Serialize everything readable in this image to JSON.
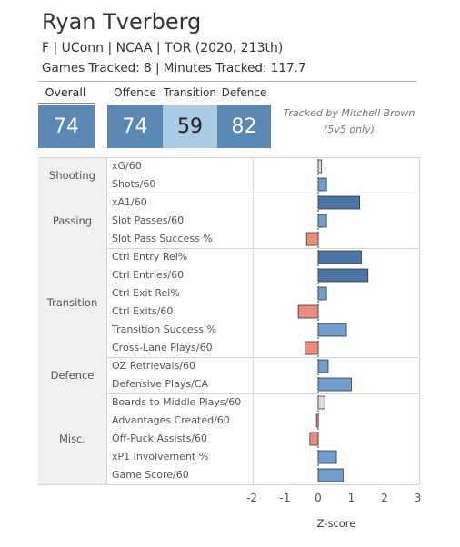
{
  "header": {
    "name": "Ryan Tverberg",
    "info": "F | UConn | NCAA | TOR (2020, 213th)",
    "games_line": "Games Tracked: 8 | Minutes Tracked: 117.7"
  },
  "scores": {
    "overall_label": "Overall",
    "overall": "74",
    "offence_label": "Offence",
    "offence": "74",
    "transition_label": "Transition",
    "transition": "59",
    "defence_label": "Defence",
    "defence": "82"
  },
  "note": {
    "line1": "Tracked by Mitchell Brown",
    "line2": "(5v5 only)"
  },
  "colors": {
    "strong_positive": "#4a76a8",
    "positive": "#6f9fcf",
    "slight_positive": "#e6d9d6",
    "negative": "#ef8a7c"
  },
  "chart_data": {
    "type": "bar",
    "orientation": "horizontal",
    "xlabel": "Z-score",
    "xlim": [
      -2,
      3
    ],
    "xticks": [
      "-2",
      "-1",
      "0",
      "1",
      "2",
      "3"
    ],
    "groups": [
      {
        "name": "Shooting",
        "metrics": [
          {
            "label": "xG/60",
            "value": 0.1
          },
          {
            "label": "Shots/60",
            "value": 0.25
          }
        ]
      },
      {
        "name": "Passing",
        "metrics": [
          {
            "label": "xA1/60",
            "value": 1.25
          },
          {
            "label": "Slot Passes/60",
            "value": 0.25
          },
          {
            "label": "Slot Pass Success %",
            "value": -0.35
          }
        ]
      },
      {
        "name": "Transition",
        "metrics": [
          {
            "label": "Ctrl Entry Rel%",
            "value": 1.3
          },
          {
            "label": "Ctrl Entries/60",
            "value": 1.5
          },
          {
            "label": "Ctrl Exit Rel%",
            "value": 0.25
          },
          {
            "label": "Ctrl Exits/60",
            "value": -0.6
          },
          {
            "label": "Transition Success %",
            "value": 0.85
          },
          {
            "label": "Cross-Lane Plays/60",
            "value": -0.4
          }
        ]
      },
      {
        "name": "Defence",
        "metrics": [
          {
            "label": "OZ Retrievals/60",
            "value": 0.3
          },
          {
            "label": "Defensive Plays/CA",
            "value": 1.0
          }
        ]
      },
      {
        "name": "Misc.",
        "metrics": [
          {
            "label": "Boards to Middle Plays/60",
            "value": 0.2
          },
          {
            "label": "Advantages Created/60",
            "value": -0.05
          },
          {
            "label": "Off-Puck Assists/60",
            "value": -0.25
          },
          {
            "label": "xP1 Involvement %",
            "value": 0.55
          },
          {
            "label": "Game Score/60",
            "value": 0.75
          }
        ]
      }
    ]
  }
}
